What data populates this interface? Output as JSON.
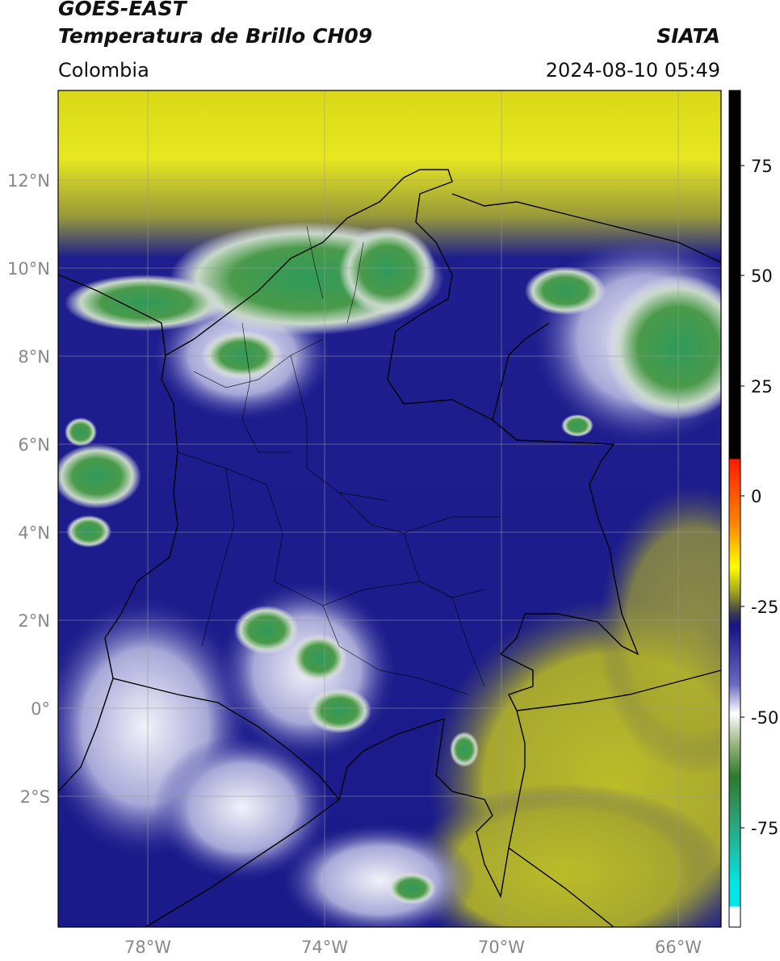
{
  "header": {
    "satellite": "GOES-EAST",
    "product": "Temperatura de Brillo CH09",
    "brand": "SIATA",
    "region": "Colombia",
    "timestamp": "2024-08-10 05:49"
  },
  "map": {
    "lat_ticks": [
      "12°N",
      "10°N",
      "8°N",
      "6°N",
      "4°N",
      "2°N",
      "0°",
      "2°S"
    ],
    "lon_ticks": [
      "78°W",
      "74°W",
      "70°W",
      "66°W"
    ],
    "lon_range": [
      -80,
      -65
    ],
    "lat_range": [
      -5,
      14
    ]
  },
  "colorbar": {
    "ticks": [
      "75",
      "50",
      "25",
      "0",
      "-25",
      "-50",
      "-75"
    ],
    "range": [
      -95,
      90
    ],
    "colors": {
      "warm_black": "#000000",
      "red": "#ff2200",
      "orange": "#ff8800",
      "yellow": "#ffff00",
      "olive": "#c0c020",
      "navy": "#1a1a8c",
      "white": "#ffffff",
      "green": "#3a9040",
      "cyan": "#00e0e0"
    }
  }
}
